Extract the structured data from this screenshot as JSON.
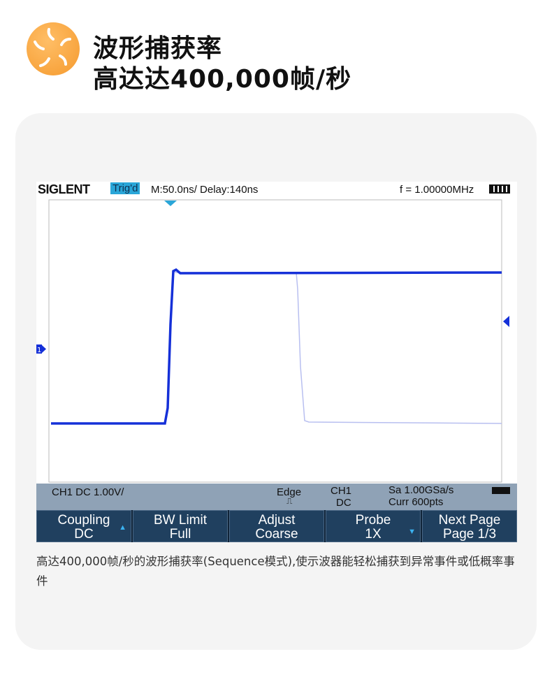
{
  "header": {
    "title_line1": "波形捕获率",
    "title_line2": "高达达400,000帧/秒",
    "logo_icon": "swirl-icon",
    "accent": "#f59a2e"
  },
  "scope": {
    "brand": "SIGLENT",
    "trigger_status": "Trig'd",
    "timebase": "M:50.0ns/ Delay:140ns",
    "frequency": "f = 1.00000MHz",
    "battery_icon": "battery-icon",
    "status": {
      "channel": "CH1 DC 1.00V/",
      "trigger_type": "Edge",
      "trigger_source": "CH1",
      "trigger_coupling": "DC",
      "sample_rate": "Sa 1.00GSa/s",
      "memory": "Curr 600pts",
      "usb_icon": "usb-icon"
    },
    "softkeys": [
      {
        "label": "Coupling",
        "value": "DC"
      },
      {
        "label": "BW Limit",
        "value": "Full"
      },
      {
        "label": "Adjust",
        "value": "Coarse"
      },
      {
        "label": "Probe",
        "value": "1X"
      },
      {
        "label": "Next Page",
        "value": "Page 1/3"
      }
    ],
    "channel_marker": "1",
    "trace_color": "#1530d8"
  },
  "caption": "高达400,000帧/秒的波形捕获率(Sequence模式),使示波器能轻松捕获到异常事件或低概率事件"
}
